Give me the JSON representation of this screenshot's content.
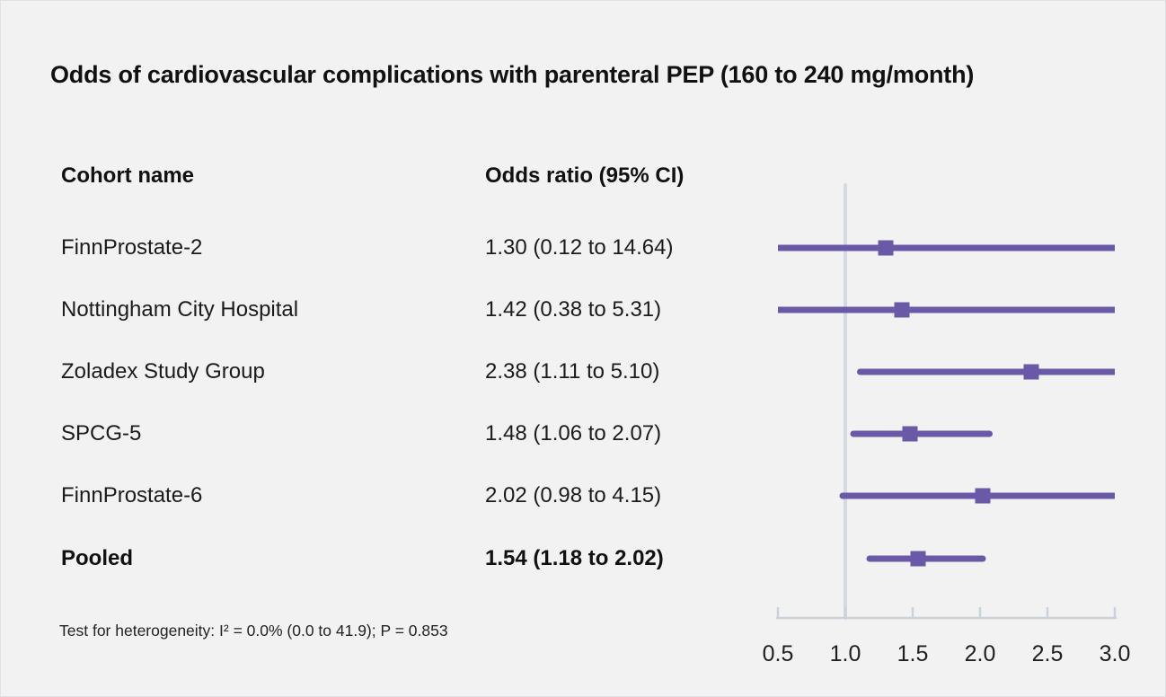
{
  "title": "Odds of cardiovascular complications with parenteral PEP (160 to 240 mg/month)",
  "table": {
    "cohort_header": "Cohort name",
    "or_header": "Odds ratio (95% CI)"
  },
  "footnote": "Test for heterogeneity: I² = 0.0% (0.0 to 41.9); P = 0.853",
  "colors": {
    "background": "#f2f2f2",
    "text": "#1b1b1b",
    "accent": "#6a59a6",
    "axis": "#cbd2da",
    "ref_line": "#d5dae2"
  },
  "chart_data": {
    "type": "forest",
    "xlabel": "Odds ratio",
    "xlim": [
      0.5,
      3.0
    ],
    "xticks": [
      "0.5",
      "1.0",
      "1.5",
      "2.0",
      "2.5",
      "3.0"
    ],
    "ref_line": 1.0,
    "rows": [
      {
        "label": "FinnProstate-2",
        "or": 1.3,
        "lo": 0.12,
        "hi": 14.64,
        "or_text": "1.30 (0.12 to 14.64)",
        "bold": false
      },
      {
        "label": "Nottingham City Hospital",
        "or": 1.42,
        "lo": 0.38,
        "hi": 5.31,
        "or_text": "1.42 (0.38 to 5.31)",
        "bold": false
      },
      {
        "label": "Zoladex Study Group",
        "or": 2.38,
        "lo": 1.11,
        "hi": 5.1,
        "or_text": "2.38 (1.11 to 5.10)",
        "bold": false
      },
      {
        "label": "SPCG-5",
        "or": 1.48,
        "lo": 1.06,
        "hi": 2.07,
        "or_text": "1.48 (1.06 to 2.07)",
        "bold": false
      },
      {
        "label": "FinnProstate-6",
        "or": 2.02,
        "lo": 0.98,
        "hi": 4.15,
        "or_text": "2.02 (0.98 to 4.15)",
        "bold": false
      },
      {
        "label": "Pooled",
        "or": 1.54,
        "lo": 1.18,
        "hi": 2.02,
        "or_text": "1.54 (1.18 to 2.02)",
        "bold": true
      }
    ]
  }
}
